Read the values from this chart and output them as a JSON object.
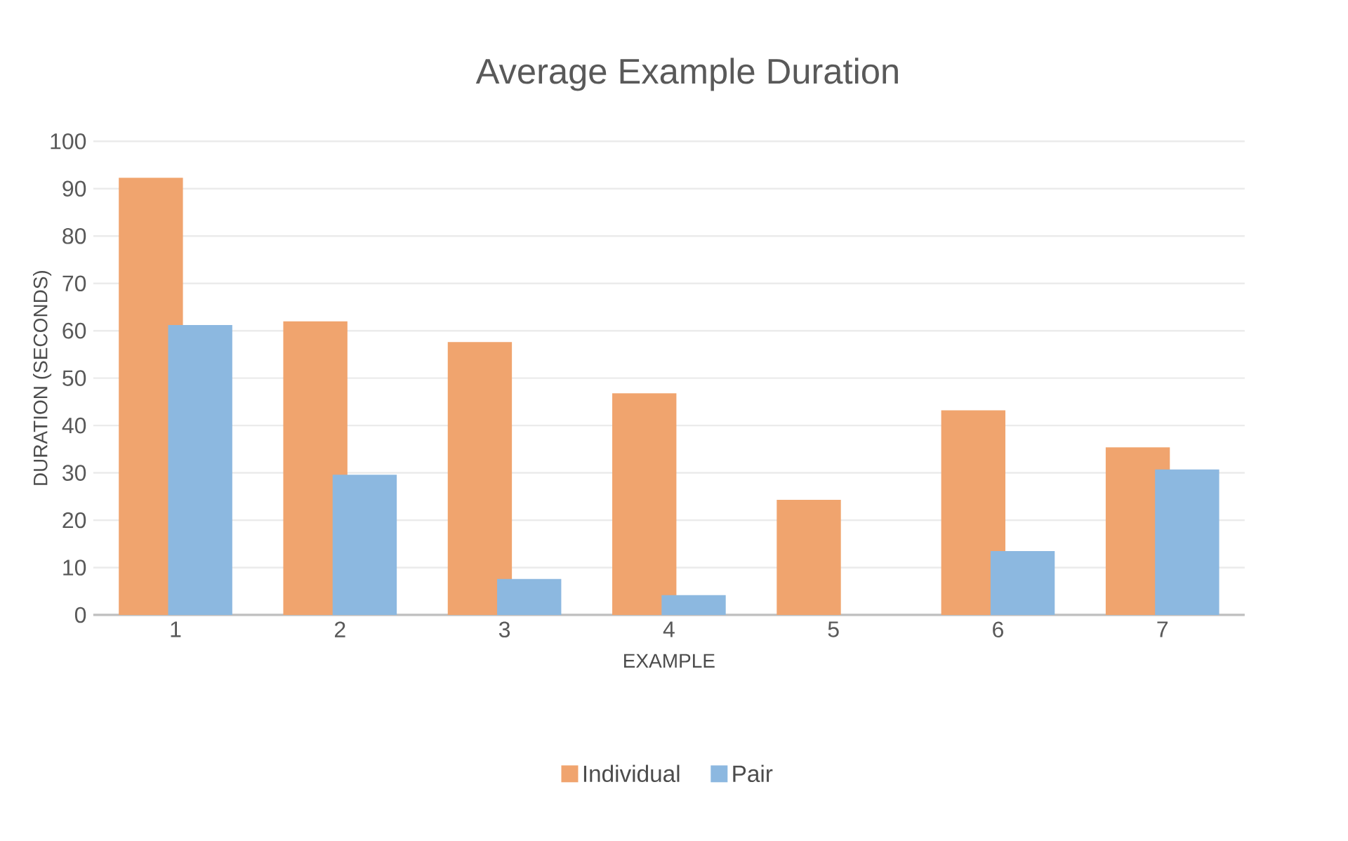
{
  "chart_data": {
    "type": "bar",
    "title": "Average Example Duration",
    "xlabel": "EXAMPLE",
    "ylabel": "DURATION (SECONDS)",
    "categories": [
      "1",
      "2",
      "3",
      "4",
      "5",
      "6",
      "7"
    ],
    "series": [
      {
        "name": "Individual",
        "color": "#f0a46e",
        "values": [
          92.3,
          62,
          57.6,
          46.8,
          24.3,
          43.2,
          35.4
        ]
      },
      {
        "name": "Pair",
        "color": "#8cb8e0",
        "values": [
          61.2,
          29.6,
          7.6,
          4.2,
          null,
          13.5,
          30.7
        ]
      }
    ],
    "ylim": [
      0,
      100
    ],
    "yticks": [
      0,
      10,
      20,
      30,
      40,
      50,
      60,
      70,
      80,
      90,
      100
    ],
    "grid": "y",
    "legend": "bottom"
  }
}
